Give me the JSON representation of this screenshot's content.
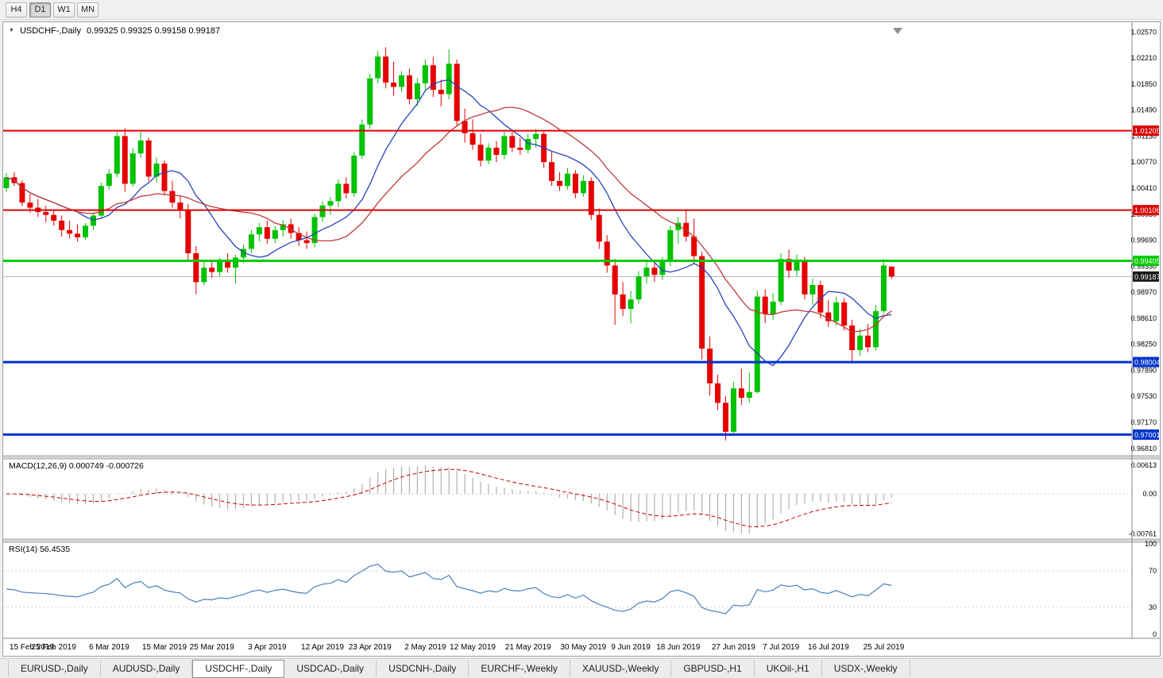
{
  "toolbar": {
    "timeframes": [
      "H4",
      "D1",
      "W1",
      "MN"
    ],
    "active_timeframe": "D1"
  },
  "chart_header": {
    "symbol_title": "USDCHF-,Daily",
    "ohlc_text": "0.99325 0.99325 0.99158 0.99187"
  },
  "macd_panel": {
    "title": "MACD(12,26,9) 0.000749 -0.000726",
    "fast": 12,
    "slow": 26,
    "signal": 9,
    "value": "0.000749",
    "signal_value": "-0.000726",
    "axis_labels": [
      "0.00613",
      "0.00",
      "-0.00761"
    ]
  },
  "rsi_panel": {
    "title": "RSI(14) 56.4535",
    "period": 14,
    "value": "56.4535",
    "axis_labels": [
      "100",
      "70",
      "30",
      "0"
    ]
  },
  "chart_data": {
    "type": "candlestick",
    "symbol": "USDCHF",
    "timeframe": "Daily",
    "price_range": {
      "min": 0.9672,
      "max": 1.0265
    },
    "price_axis_labels": [
      "1.02570",
      "1.02210",
      "1.01850",
      "1.01490",
      "1.01130",
      "1.00770",
      "1.00410",
      "1.00050",
      "0.99690",
      "0.99330",
      "0.98970",
      "0.98610",
      "0.98250",
      "0.97890",
      "0.97530",
      "0.97170",
      "0.96810"
    ],
    "x_labels": [
      {
        "text": "15 Feb 2019",
        "i": 0
      },
      {
        "text": "25 Feb 2019",
        "i": 6
      },
      {
        "text": "6 Mar 2019",
        "i": 13
      },
      {
        "text": "15 Mar 2019",
        "i": 20
      },
      {
        "text": "25 Mar 2019",
        "i": 26
      },
      {
        "text": "3 Apr 2019",
        "i": 33
      },
      {
        "text": "12 Apr 2019",
        "i": 40
      },
      {
        "text": "23 Apr 2019",
        "i": 46
      },
      {
        "text": "2 May 2019",
        "i": 53
      },
      {
        "text": "12 May 2019",
        "i": 59
      },
      {
        "text": "21 May 2019",
        "i": 66
      },
      {
        "text": "30 May 2019",
        "i": 73
      },
      {
        "text": "9 Jun 2019",
        "i": 79
      },
      {
        "text": "18 Jun 2019",
        "i": 85
      },
      {
        "text": "27 Jun 2019",
        "i": 92
      },
      {
        "text": "7 Jul 2019",
        "i": 98
      },
      {
        "text": "16 Jul 2019",
        "i": 104
      },
      {
        "text": "25 Jul 2019",
        "i": 111
      }
    ],
    "hlines": [
      {
        "price": 1.01205,
        "label": "1.01205",
        "color": "#dd0000",
        "width": 2,
        "kind": "resistance"
      },
      {
        "price": 1.00106,
        "label": "1.00106",
        "color": "#dd0000",
        "width": 2,
        "kind": "resistance"
      },
      {
        "price": 0.99405,
        "label": "0.99405",
        "color": "#00cc00",
        "width": 3,
        "kind": "pivot"
      },
      {
        "price": 0.98004,
        "label": "0.98004",
        "color": "#0033cc",
        "width": 3,
        "kind": "support"
      },
      {
        "price": 0.97001,
        "label": "0.97001",
        "color": "#0033cc",
        "width": 3,
        "kind": "support"
      }
    ],
    "current_price": {
      "value": 0.99187,
      "label": "0.99187",
      "badge_color": "#1a1a1a"
    },
    "moving_averages": [
      {
        "period": 10,
        "type": "sma",
        "color": "#2743b8"
      },
      {
        "period": 20,
        "type": "sma",
        "color": "#c03a3a"
      }
    ],
    "colors": {
      "bull": "#00c200",
      "bear": "#e60000",
      "macd_bars": "#b0b0b0",
      "macd_signal": "#cc0000",
      "rsi_line": "#4a7fbc"
    },
    "candles_ohlc": [
      [
        1.0041,
        1.0062,
        1.0036,
        1.0056
      ],
      [
        1.0056,
        1.0063,
        1.0044,
        1.0048
      ],
      [
        1.0048,
        1.0052,
        1.0016,
        1.0021
      ],
      [
        1.0021,
        1.0033,
        1.0007,
        1.0014
      ],
      [
        1.0014,
        1.0026,
        1.0001,
        1.0008
      ],
      [
        1.0008,
        1.0017,
        0.9994,
        1.0004
      ],
      [
        1.0004,
        1.0011,
        0.9989,
        0.9996
      ],
      [
        0.9996,
        1.0003,
        0.9974,
        0.9983
      ],
      [
        0.9983,
        0.9996,
        0.9971,
        0.9978
      ],
      [
        0.9978,
        0.9991,
        0.9967,
        0.9973
      ],
      [
        0.9973,
        0.9993,
        0.9969,
        0.9989
      ],
      [
        0.9989,
        1.0007,
        0.9983,
        1.0003
      ],
      [
        1.0003,
        1.0049,
        0.9999,
        1.0044
      ],
      [
        1.0044,
        1.0067,
        1.0039,
        1.0061
      ],
      [
        1.0061,
        1.0119,
        1.0056,
        1.0113
      ],
      [
        1.0113,
        1.0124,
        1.0036,
        1.0047
      ],
      [
        1.0047,
        1.0096,
        1.0043,
        1.0089
      ],
      [
        1.0089,
        1.0119,
        1.0083,
        1.0107
      ],
      [
        1.0107,
        1.0111,
        1.0051,
        1.0057
      ],
      [
        1.0057,
        1.0083,
        1.0049,
        1.0075
      ],
      [
        1.0075,
        1.0079,
        1.0031,
        1.0037
      ],
      [
        1.0037,
        1.0051,
        1.0014,
        1.0021
      ],
      [
        1.0021,
        1.0031,
        0.9999,
        1.0011
      ],
      [
        1.0011,
        1.0019,
        0.9939,
        0.9951
      ],
      [
        0.9951,
        0.9961,
        0.9894,
        0.9911
      ],
      [
        0.9911,
        0.9939,
        0.9907,
        0.9931
      ],
      [
        0.9931,
        0.9941,
        0.9917,
        0.9925
      ],
      [
        0.9925,
        0.9945,
        0.9919,
        0.9939
      ],
      [
        0.9939,
        0.9951,
        0.9924,
        0.9931
      ],
      [
        0.9931,
        0.9949,
        0.9909,
        0.9945
      ],
      [
        0.9945,
        0.9963,
        0.9937,
        0.9957
      ],
      [
        0.9957,
        0.9983,
        0.9951,
        0.9977
      ],
      [
        0.9977,
        0.9993,
        0.9967,
        0.9987
      ],
      [
        0.9987,
        0.9996,
        0.9964,
        0.9971
      ],
      [
        0.9971,
        0.9989,
        0.9965,
        0.9983
      ],
      [
        0.9983,
        0.9997,
        0.9974,
        0.9991
      ],
      [
        0.9991,
        0.9999,
        0.9971,
        0.9979
      ],
      [
        0.9979,
        0.9987,
        0.9961,
        0.9969
      ],
      [
        0.9969,
        0.9981,
        0.9957,
        0.9965
      ],
      [
        0.9965,
        1.0006,
        0.9959,
        1.0001
      ],
      [
        1.0001,
        1.0023,
        0.9994,
        1.0017
      ],
      [
        1.0017,
        1.0029,
        1.0004,
        1.0023
      ],
      [
        1.0023,
        1.0053,
        1.0015,
        1.0047
      ],
      [
        1.0047,
        1.0056,
        1.0027,
        1.0034
      ],
      [
        1.0034,
        1.0091,
        1.0029,
        1.0086
      ],
      [
        1.0086,
        1.0136,
        1.0081,
        1.0129
      ],
      [
        1.0129,
        1.0199,
        1.0123,
        1.0193
      ],
      [
        1.0193,
        1.0231,
        1.0186,
        1.0223
      ],
      [
        1.0223,
        1.0236,
        1.0179,
        1.0187
      ],
      [
        1.0187,
        1.0216,
        1.0169,
        1.0181
      ],
      [
        1.0181,
        1.0203,
        1.0174,
        1.0197
      ],
      [
        1.0197,
        1.0206,
        1.0157,
        1.0164
      ],
      [
        1.0164,
        1.0193,
        1.0154,
        1.0186
      ],
      [
        1.0186,
        1.0219,
        1.0177,
        1.0211
      ],
      [
        1.0211,
        1.0223,
        1.0167,
        1.0177
      ],
      [
        1.0177,
        1.0191,
        1.0154,
        1.0171
      ],
      [
        1.0171,
        1.0233,
        1.0164,
        1.0213
      ],
      [
        1.0213,
        1.0219,
        1.0127,
        1.0134
      ],
      [
        1.0134,
        1.0151,
        1.0104,
        1.0117
      ],
      [
        1.0117,
        1.0136,
        1.0094,
        1.0101
      ],
      [
        1.0101,
        1.0116,
        1.0071,
        1.0079
      ],
      [
        1.0079,
        1.0103,
        1.0074,
        1.0097
      ],
      [
        1.0097,
        1.0106,
        1.0077,
        1.0087
      ],
      [
        1.0087,
        1.0119,
        1.0081,
        1.0113
      ],
      [
        1.0113,
        1.0121,
        1.0091,
        1.0097
      ],
      [
        1.0097,
        1.0111,
        1.0087,
        1.0094
      ],
      [
        1.0094,
        1.0116,
        1.0089,
        1.0109
      ],
      [
        1.0109,
        1.0123,
        1.0097,
        1.0116
      ],
      [
        1.0116,
        1.0119,
        1.0069,
        1.0077
      ],
      [
        1.0077,
        1.0091,
        1.0044,
        1.0051
      ],
      [
        1.0051,
        1.0063,
        1.0037,
        1.0044
      ],
      [
        1.0044,
        1.0069,
        1.0039,
        1.0061
      ],
      [
        1.0061,
        1.0066,
        1.0027,
        1.0034
      ],
      [
        1.0034,
        1.0059,
        1.0029,
        1.0051
      ],
      [
        1.0051,
        1.0056,
        0.9997,
        1.0004
      ],
      [
        1.0004,
        1.0013,
        0.9957,
        0.9967
      ],
      [
        0.9967,
        0.9976,
        0.9924,
        0.9934
      ],
      [
        0.9934,
        0.9943,
        0.9852,
        0.9894
      ],
      [
        0.9894,
        0.9911,
        0.9864,
        0.9874
      ],
      [
        0.9874,
        0.9899,
        0.9854,
        0.9887
      ],
      [
        0.9887,
        0.9926,
        0.9881,
        0.9919
      ],
      [
        0.9919,
        0.9939,
        0.9909,
        0.9931
      ],
      [
        0.9931,
        0.9941,
        0.9911,
        0.9921
      ],
      [
        0.9921,
        0.9946,
        0.9914,
        0.9939
      ],
      [
        0.9939,
        0.9989,
        0.9933,
        0.9983
      ],
      [
        0.9983,
        1.0001,
        0.9964,
        0.9993
      ],
      [
        0.9993,
        1.0011,
        0.9967,
        0.9974
      ],
      [
        0.9974,
        0.9999,
        0.9937,
        0.9947
      ],
      [
        0.9947,
        0.9953,
        0.9804,
        0.9819
      ],
      [
        0.9819,
        0.9836,
        0.9754,
        0.9771
      ],
      [
        0.9771,
        0.9783,
        0.9734,
        0.9744
      ],
      [
        0.9744,
        0.9753,
        0.9692,
        0.9704
      ],
      [
        0.9704,
        0.9773,
        0.9699,
        0.9764
      ],
      [
        0.9764,
        0.9791,
        0.9741,
        0.9751
      ],
      [
        0.9751,
        0.9786,
        0.9744,
        0.9759
      ],
      [
        0.9759,
        0.9899,
        0.9757,
        0.9891
      ],
      [
        0.9891,
        0.9901,
        0.9854,
        0.9867
      ],
      [
        0.9867,
        0.9896,
        0.9859,
        0.9884
      ],
      [
        0.9884,
        0.9951,
        0.9879,
        0.9943
      ],
      [
        0.9943,
        0.9956,
        0.9917,
        0.9927
      ],
      [
        0.9927,
        0.9949,
        0.9919,
        0.9941
      ],
      [
        0.9941,
        0.9946,
        0.9887,
        0.9894
      ],
      [
        0.9894,
        0.9916,
        0.9879,
        0.9907
      ],
      [
        0.9907,
        0.9913,
        0.9861,
        0.9869
      ],
      [
        0.9869,
        0.9886,
        0.9849,
        0.9857
      ],
      [
        0.9857,
        0.9891,
        0.9851,
        0.9883
      ],
      [
        0.9883,
        0.9889,
        0.9844,
        0.9851
      ],
      [
        0.9851,
        0.9859,
        0.9801,
        0.9817
      ],
      [
        0.9817,
        0.9846,
        0.9809,
        0.9837
      ],
      [
        0.9837,
        0.9853,
        0.9814,
        0.9821
      ],
      [
        0.9821,
        0.9879,
        0.9817,
        0.9871
      ],
      [
        0.9871,
        0.9943,
        0.9867,
        0.9934
      ],
      [
        0.99325,
        0.99325,
        0.99158,
        0.99187
      ]
    ]
  },
  "tabs": [
    {
      "label": "EURUSD-,Daily",
      "active": false
    },
    {
      "label": "AUDUSD-,Daily",
      "active": false
    },
    {
      "label": "USDCHF-,Daily",
      "active": true
    },
    {
      "label": "USDCAD-,Daily",
      "active": false
    },
    {
      "label": "USDCNH-,Daily",
      "active": false
    },
    {
      "label": "EURCHF-,Weekly",
      "active": false
    },
    {
      "label": "XAUUSD-,Weekly",
      "active": false
    },
    {
      "label": "GBPUSD-,H1",
      "active": false
    },
    {
      "label": "UKOil-,H1",
      "active": false
    },
    {
      "label": "USDX-,Weekly",
      "active": false
    }
  ]
}
